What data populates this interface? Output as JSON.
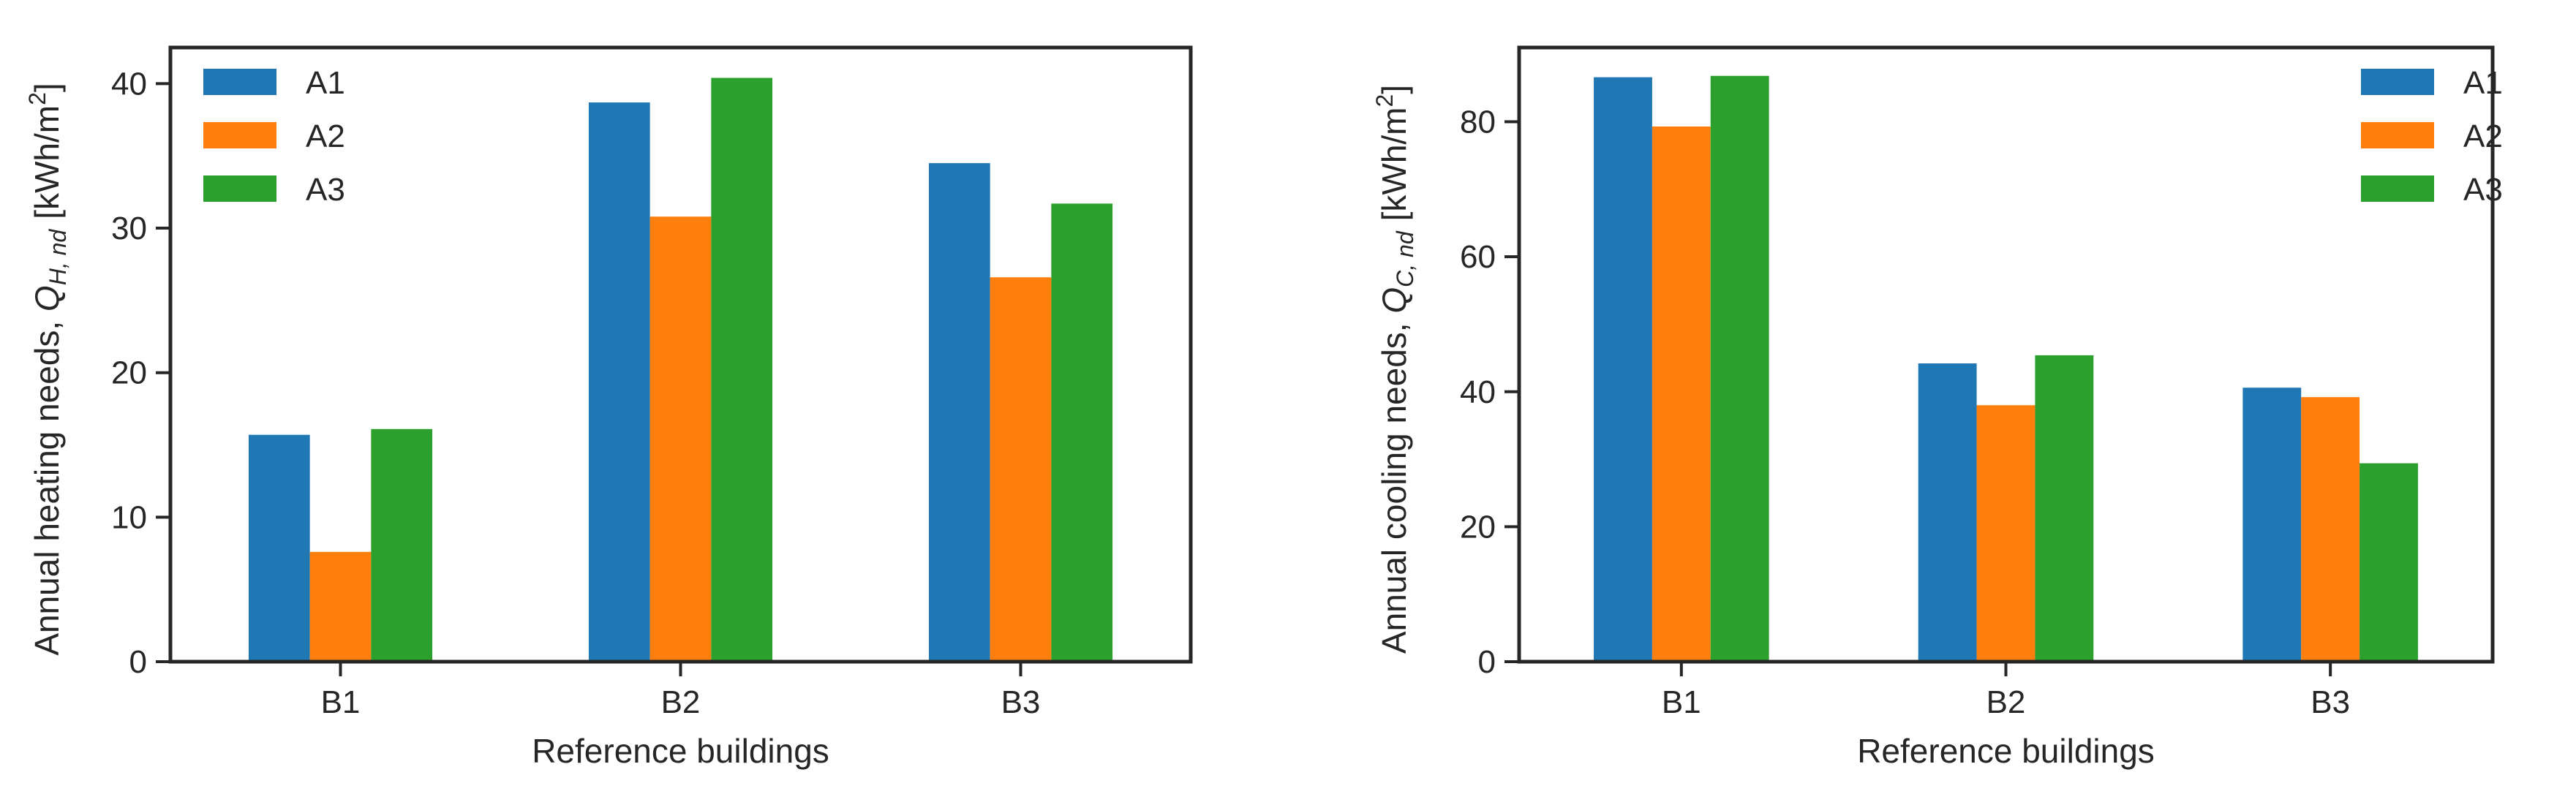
{
  "colors": {
    "A1": "#1f77b4",
    "A2": "#ff7f0e",
    "A3": "#2ca02c",
    "axis": "#262626"
  },
  "chart_data": [
    {
      "type": "bar",
      "categories": [
        "B1",
        "B2",
        "B3"
      ],
      "series": [
        {
          "name": "A1",
          "values": [
            15.7,
            38.7,
            34.5
          ]
        },
        {
          "name": "A2",
          "values": [
            7.6,
            30.8,
            26.6
          ]
        },
        {
          "name": "A3",
          "values": [
            16.1,
            40.4,
            31.7
          ]
        }
      ],
      "xlabel": "Reference buildings",
      "ylabel_text": "Annual heating needs, ",
      "ylabel_symbol": "Q",
      "ylabel_subscript": "H, nd",
      "ylabel_unit_open": "[kWh/m",
      "ylabel_unit_power": "2",
      "ylabel_unit_close": "]",
      "ylim": [
        0,
        42.5
      ],
      "yticks": [
        0,
        10,
        20,
        30,
        40
      ],
      "legend_position": "top-left",
      "grid": false
    },
    {
      "type": "bar",
      "categories": [
        "B1",
        "B2",
        "B3"
      ],
      "series": [
        {
          "name": "A1",
          "values": [
            86.6,
            44.2,
            40.6
          ]
        },
        {
          "name": "A2",
          "values": [
            79.3,
            38.0,
            39.2
          ]
        },
        {
          "name": "A3",
          "values": [
            86.8,
            45.4,
            29.4
          ]
        }
      ],
      "xlabel": "Reference buildings",
      "ylabel_text": "Annual cooling needs, ",
      "ylabel_symbol": "Q",
      "ylabel_subscript": "C, nd",
      "ylabel_unit_open": "[kWh/m",
      "ylabel_unit_power": "2",
      "ylabel_unit_close": "]",
      "ylim": [
        0,
        91
      ],
      "yticks": [
        0,
        20,
        40,
        60,
        80
      ],
      "legend_position": "top-right",
      "grid": false
    }
  ]
}
